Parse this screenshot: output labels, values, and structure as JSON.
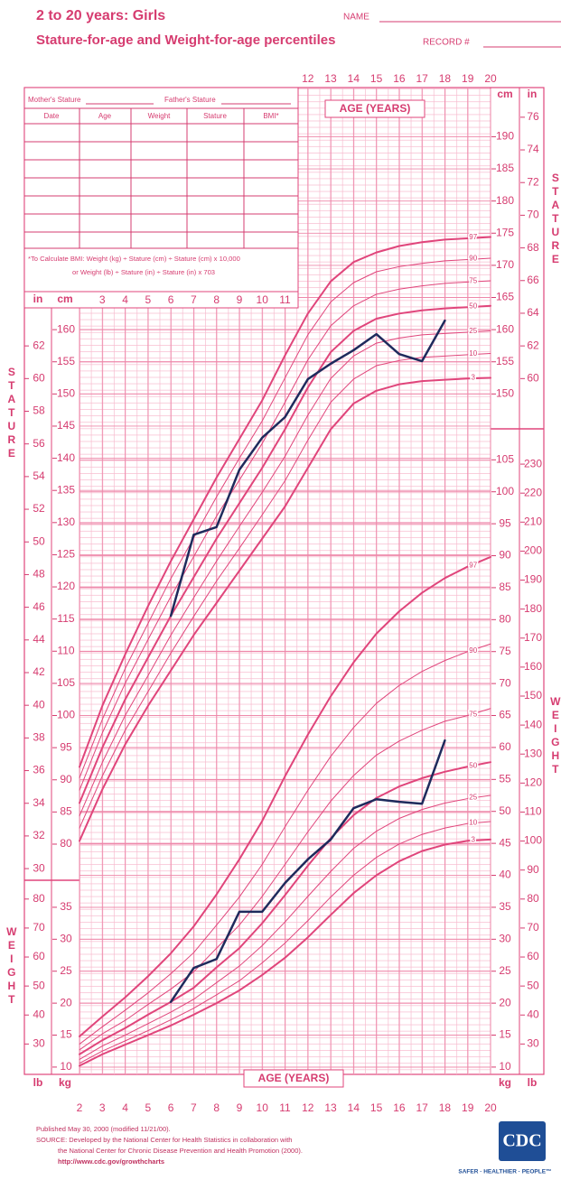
{
  "header": {
    "title": "2 to 20 years: Girls",
    "subtitle": "Stature-for-age and Weight-for-age percentiles",
    "name_label": "NAME",
    "record_label": "RECORD #"
  },
  "record_table": {
    "mother": "Mother's Stature",
    "father": "Father's Stature",
    "columns": [
      "Date",
      "Age",
      "Weight",
      "Stature",
      "BMI*"
    ],
    "bmi_note": [
      "*To Calculate BMI: Weight (kg) ÷ Stature (cm) ÷ Stature (cm) x 10,000",
      "or Weight (lb) ÷ Stature (in) ÷ Stature (in) x 703"
    ]
  },
  "chart_data": [
    {
      "type": "line",
      "ylabel": "STATURE",
      "xlabel": "AGE (YEARS)",
      "unit": "cm",
      "alt_unit": "in",
      "x": [
        2,
        3,
        4,
        5,
        6,
        7,
        8,
        9,
        10,
        11,
        12,
        13,
        14,
        15,
        16,
        17,
        18,
        19,
        20
      ],
      "xlim": [
        2,
        20
      ],
      "xticks_top": [
        12,
        13,
        14,
        15,
        16,
        17,
        18,
        19,
        20
      ],
      "xticks_mid": [
        3,
        4,
        5,
        6,
        7,
        8,
        9,
        10,
        11
      ],
      "ylim": [
        75,
        197.5
      ],
      "yticks": [
        80,
        85,
        90,
        95,
        100,
        105,
        110,
        115,
        120,
        125,
        130,
        135,
        140,
        145,
        150,
        155,
        160
      ],
      "y2ticks": [
        150,
        155,
        160,
        165,
        170,
        175,
        180,
        185,
        190
      ],
      "y_alt_lim": [
        29.53,
        77.76
      ],
      "y_alt_ticks": [
        30,
        32,
        34,
        36,
        38,
        40,
        42,
        44,
        46,
        48,
        50,
        52,
        54,
        56,
        58,
        60,
        62
      ],
      "y2_alt_ticks": [
        60,
        62,
        64,
        66,
        68,
        70,
        72,
        74,
        76
      ],
      "series": [
        {
          "name": "97",
          "color": "#e0457b",
          "line_width": 2,
          "values": [
            92,
            101.5,
            109.5,
            117,
            124,
            130.5,
            137,
            143,
            149,
            156,
            162.5,
            167.5,
            170.5,
            172,
            173,
            173.6,
            174,
            174.2,
            174.4
          ]
        },
        {
          "name": "90",
          "color": "#e0457b",
          "line_width": 1,
          "values": [
            90.3,
            99.4,
            107.3,
            114.3,
            121.3,
            127.6,
            134,
            140,
            145.8,
            152.5,
            159.2,
            164.3,
            167.3,
            169,
            169.8,
            170.3,
            170.7,
            170.9,
            171.1
          ]
        },
        {
          "name": "75",
          "color": "#e0457b",
          "line_width": 1,
          "values": [
            88.4,
            97.3,
            105,
            111.8,
            118.5,
            124.7,
            131,
            136.6,
            142.3,
            148.7,
            155.3,
            160.6,
            163.7,
            165.5,
            166.3,
            166.8,
            167.2,
            167.4,
            167.6
          ]
        },
        {
          "name": "50",
          "color": "#e0457b",
          "line_width": 2,
          "values": [
            86.4,
            95,
            102.5,
            109,
            115.5,
            121.5,
            127.5,
            133,
            138.5,
            144.5,
            151,
            156.5,
            159.8,
            161.7,
            162.5,
            163,
            163.3,
            163.5,
            163.7
          ]
        },
        {
          "name": "25",
          "color": "#e0457b",
          "line_width": 1,
          "values": [
            84.4,
            92.7,
            100,
            106.2,
            112.5,
            118.3,
            124,
            129.4,
            134.7,
            140.3,
            146.7,
            152.4,
            155.9,
            157.9,
            158.7,
            159.2,
            159.4,
            159.6,
            159.8
          ]
        },
        {
          "name": "10",
          "color": "#e0457b",
          "line_width": 1,
          "values": [
            82.5,
            90.6,
            97.7,
            103.7,
            109.7,
            115.4,
            120.9,
            126,
            131.2,
            136.5,
            142.8,
            148.7,
            152.3,
            154.4,
            155.2,
            155.7,
            155.9,
            156.1,
            156.3
          ]
        },
        {
          "name": "3",
          "color": "#e0457b",
          "line_width": 2,
          "values": [
            80.5,
            88.5,
            95.5,
            101.5,
            107,
            112.5,
            117.5,
            122.5,
            127.5,
            132.5,
            138.5,
            144.5,
            148.5,
            150.5,
            151.5,
            152,
            152.2,
            152.4,
            152.5
          ]
        },
        {
          "color": "#1e2a5c",
          "line_width": 2.5,
          "x": [
            6,
            7,
            8,
            9,
            10,
            11,
            12,
            13,
            14,
            15,
            16,
            17,
            18
          ],
          "values": [
            115.5,
            128.1,
            129.3,
            138.2,
            143.2,
            146.4,
            152.3,
            154.7,
            156.8,
            159.3,
            156.2,
            155.1,
            161.4
          ]
        }
      ]
    },
    {
      "type": "line",
      "ylabel": "WEIGHT",
      "xlabel": "AGE (YEARS)",
      "unit": "kg",
      "alt_unit": "lb",
      "x": [
        2,
        3,
        4,
        5,
        6,
        7,
        8,
        9,
        10,
        11,
        12,
        13,
        14,
        15,
        16,
        17,
        18,
        19,
        20
      ],
      "xlim": [
        2,
        20
      ],
      "xticks": [
        2,
        3,
        4,
        5,
        6,
        7,
        8,
        9,
        10,
        11,
        12,
        13,
        14,
        15,
        16,
        17,
        18,
        19,
        20
      ],
      "ylim": [
        9,
        109
      ],
      "yticks": [
        10,
        15,
        20,
        25,
        30,
        35
      ],
      "y2ticks": [
        10,
        15,
        20,
        25,
        30,
        35,
        40,
        45,
        50,
        55,
        60,
        65,
        70,
        75,
        80,
        85,
        90,
        95,
        100,
        105
      ],
      "y_alt_lim": [
        19.84,
        240.3
      ],
      "y_alt_ticks": [
        30,
        40,
        50,
        60,
        70,
        80
      ],
      "y2_alt_ticks": [
        30,
        40,
        50,
        60,
        70,
        80,
        90,
        100,
        110,
        120,
        130,
        140,
        150,
        160,
        170,
        180,
        190,
        200,
        210,
        220,
        230
      ],
      "series": [
        {
          "name": "97",
          "color": "#e0457b",
          "line_width": 2,
          "values": [
            14.8,
            17.9,
            20.9,
            24.2,
            27.8,
            32,
            37,
            42.5,
            48.5,
            55.5,
            62,
            68,
            73.3,
            77.8,
            81.3,
            84.2,
            86.5,
            88.3,
            89.8
          ]
        },
        {
          "name": "90",
          "color": "#e0457b",
          "line_width": 1,
          "values": [
            13.6,
            16.3,
            18.9,
            21.6,
            24.6,
            27.9,
            32.2,
            36.6,
            41.7,
            47.6,
            53.3,
            58.6,
            63.1,
            66.9,
            69.7,
            71.9,
            73.6,
            75,
            76.2
          ]
        },
        {
          "name": "75",
          "color": "#e0457b",
          "line_width": 1,
          "values": [
            12.7,
            15.2,
            17.3,
            19.8,
            22.2,
            24.9,
            28.6,
            32.2,
            36.7,
            41.7,
            46.8,
            51.6,
            55.6,
            58.8,
            61,
            62.7,
            64.1,
            65,
            66.1
          ]
        },
        {
          "name": "50",
          "color": "#e0457b",
          "line_width": 2,
          "values": [
            12,
            14.2,
            16.1,
            18.2,
            20.2,
            22.4,
            25.6,
            28.6,
            32.5,
            36.9,
            41.5,
            45.8,
            49.4,
            52.1,
            53.9,
            55.2,
            56.2,
            57,
            57.7
          ]
        },
        {
          "name": "25",
          "color": "#e0457b",
          "line_width": 1,
          "values": [
            11.2,
            13.3,
            15,
            16.8,
            18.6,
            20.6,
            23.2,
            25.8,
            29,
            32.7,
            36.7,
            40.6,
            44.2,
            46.9,
            48.9,
            50.3,
            51.3,
            52,
            52.5
          ]
        },
        {
          "name": "10",
          "color": "#e0457b",
          "line_width": 1,
          "values": [
            10.6,
            12.5,
            14.1,
            15.7,
            17.4,
            19.2,
            21.3,
            23.5,
            26.3,
            29.4,
            32.9,
            36.6,
            40,
            42.8,
            44.9,
            46.4,
            47.4,
            48.1,
            48.4
          ]
        },
        {
          "name": "3",
          "color": "#e0457b",
          "line_width": 2,
          "values": [
            10.2,
            12,
            13.5,
            15,
            16.5,
            18.2,
            20,
            22,
            24.4,
            27.1,
            30.3,
            33.8,
            37.2,
            40,
            42.2,
            43.8,
            44.8,
            45.4,
            45.6
          ]
        },
        {
          "color": "#1e2a5c",
          "line_width": 2.5,
          "x": [
            6,
            7,
            8,
            9,
            10,
            11,
            12,
            13,
            14,
            15,
            16,
            17,
            18
          ],
          "values": [
            20.2,
            25.5,
            26.9,
            34.3,
            34.3,
            38.8,
            42.5,
            45.6,
            50.5,
            51.9,
            51.5,
            51.2,
            61.1
          ]
        }
      ]
    }
  ],
  "footer": {
    "published": "Published May 30, 2000 (modified 11/21/00).",
    "source": [
      "SOURCE: Developed by the National Center for Health Statistics in collaboration with",
      "the National Center for Chronic Disease Prevention and Health Promotion (2000).",
      "http://www.cdc.gov/growthcharts"
    ],
    "logo": "CDC",
    "tagline": "SAFER · HEALTHIER · PEOPLE™"
  }
}
